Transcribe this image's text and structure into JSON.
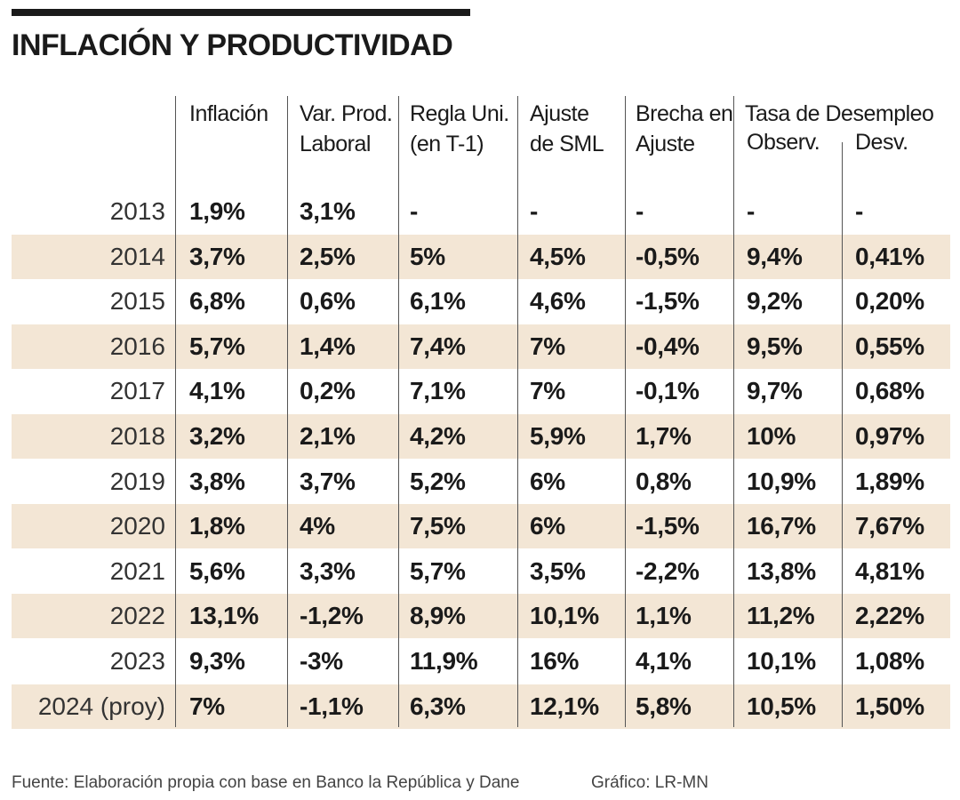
{
  "chart_data": {
    "type": "table",
    "title": "INFLACIÓN Y PRODUCTIVIDAD",
    "columns": [
      {
        "key": "inflacion",
        "label": "Inflación"
      },
      {
        "key": "var_prod",
        "label": "Var. Prod.\nLaboral"
      },
      {
        "key": "regla",
        "label": "Regla Uni.\n(en T-1)"
      },
      {
        "key": "ajuste",
        "label": "Ajuste\nde SML"
      },
      {
        "key": "brecha",
        "label": "Brecha en\nAjuste"
      },
      {
        "key": "observ",
        "label": "Observ.",
        "group": "Tasa de Desempleo"
      },
      {
        "key": "desv",
        "label": "Desv.",
        "group": "Tasa de Desempleo"
      }
    ],
    "group_header": "Tasa de Desempleo",
    "rows": [
      {
        "year": "2013",
        "values": [
          "1,9%",
          "3,1%",
          "-",
          "-",
          "-",
          "-",
          "-"
        ]
      },
      {
        "year": "2014",
        "values": [
          "3,7%",
          "2,5%",
          "5%",
          "4,5%",
          "-0,5%",
          "9,4%",
          "0,41%"
        ]
      },
      {
        "year": "2015",
        "values": [
          "6,8%",
          "0,6%",
          "6,1%",
          "4,6%",
          "-1,5%",
          "9,2%",
          "0,20%"
        ]
      },
      {
        "year": "2016",
        "values": [
          "5,7%",
          "1,4%",
          "7,4%",
          "7%",
          "-0,4%",
          "9,5%",
          "0,55%"
        ]
      },
      {
        "year": "2017",
        "values": [
          "4,1%",
          "0,2%",
          "7,1%",
          "7%",
          "-0,1%",
          "9,7%",
          "0,68%"
        ]
      },
      {
        "year": "2018",
        "values": [
          "3,2%",
          "2,1%",
          "4,2%",
          "5,9%",
          "1,7%",
          "10%",
          "0,97%"
        ]
      },
      {
        "year": "2019",
        "values": [
          "3,8%",
          "3,7%",
          "5,2%",
          "6%",
          "0,8%",
          "10,9%",
          "1,89%"
        ]
      },
      {
        "year": "2020",
        "values": [
          "1,8%",
          "4%",
          "7,5%",
          "6%",
          "-1,5%",
          "16,7%",
          "7,67%"
        ]
      },
      {
        "year": "2021",
        "values": [
          "5,6%",
          "3,3%",
          "5,7%",
          "3,5%",
          "-2,2%",
          "13,8%",
          "4,81%"
        ]
      },
      {
        "year": "2022",
        "values": [
          "13,1%",
          "-1,2%",
          "8,9%",
          "10,1%",
          "1,1%",
          "11,2%",
          "2,22%"
        ]
      },
      {
        "year": "2023",
        "values": [
          "9,3%",
          "-3%",
          "11,9%",
          "16%",
          "4,1%",
          "10,1%",
          "1,08%"
        ]
      },
      {
        "year": "2024 (proy)",
        "values": [
          "7%",
          "-1,1%",
          "6,3%",
          "12,1%",
          "5,8%",
          "10,5%",
          "1,50%"
        ]
      }
    ]
  },
  "footer": {
    "source": "Fuente: Elaboración propia con base en Banco la República y Dane",
    "credit": "Gráfico: LR-MN"
  },
  "colors": {
    "band": "#f3e6d5",
    "text": "#1a1a1a",
    "rule": "#1a1a1a"
  }
}
